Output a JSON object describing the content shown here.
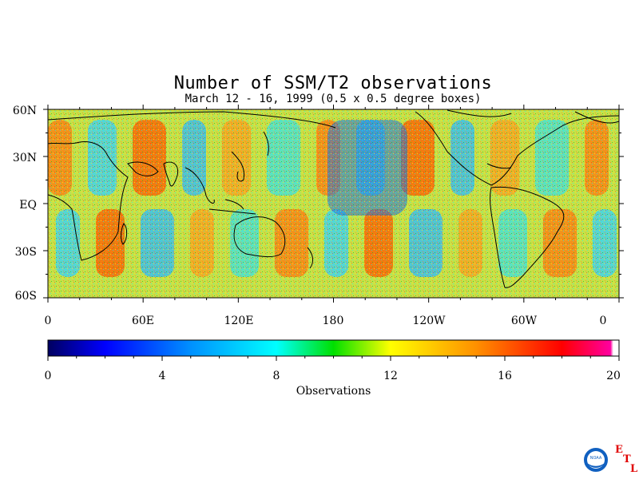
{
  "title": "Number of SSM/T2 observations",
  "subtitle": "March 12 - 16, 1999 (0.5 x 0.5 degree boxes)",
  "map": {
    "lat_labels": [
      "60N",
      "30N",
      "EQ",
      "30S",
      "60S"
    ],
    "lon_labels": [
      "0",
      "60E",
      "120E",
      "180",
      "120W",
      "60W",
      "0"
    ]
  },
  "colorbar": {
    "label": "Observations",
    "tick_labels": [
      "0",
      "4",
      "8",
      "12",
      "16",
      "20"
    ],
    "range": [
      0,
      20
    ],
    "colors": [
      "#000060",
      "#0000ff",
      "#0080ff",
      "#00ffff",
      "#00e000",
      "#ffff00",
      "#ff9000",
      "#ff0000",
      "#ff00a0",
      "#ffffff"
    ]
  },
  "logo": {
    "noaa_text": "NOAA",
    "etl": [
      "E",
      "T",
      "L"
    ]
  }
}
